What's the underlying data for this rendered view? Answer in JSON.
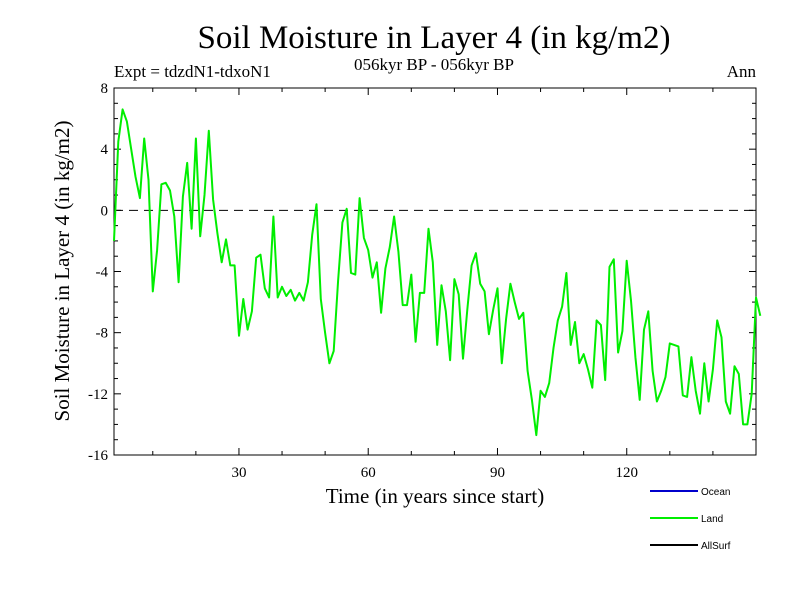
{
  "chart_data": {
    "type": "line",
    "title": "Soil Moisture in Layer 4 (in kg/m2)",
    "subtitle": "056kyr BP - 056kyr BP",
    "experiment_label": "Expt = tdzdN1-tdxoN1",
    "season_label": "Ann",
    "xlabel": "Time (in years since start)",
    "ylabel": "Soil Moisture in Layer 4 (in kg/m2)",
    "xlim": [
      1,
      150
    ],
    "ylim": [
      -16,
      8
    ],
    "x_ticks": [
      30,
      60,
      90,
      120
    ],
    "x_tick_labels": [
      "30",
      "60",
      "90",
      "120"
    ],
    "y_ticks": [
      8,
      4,
      0,
      -4,
      -8,
      -12,
      -16
    ],
    "y_tick_labels": [
      "8",
      "4",
      "0",
      "-4",
      "-8",
      "-12",
      "-16"
    ],
    "zero_line": 0,
    "legend": [
      {
        "name": "Ocean",
        "color": "#0000cc"
      },
      {
        "name": "Land",
        "color": "#00ee00"
      },
      {
        "name": "AllSurf",
        "color": "#000000"
      }
    ],
    "series": [
      {
        "name": "Land",
        "color": "#00ee00",
        "x_start": 1,
        "values": [
          -2.0,
          4.5,
          6.6,
          5.8,
          4.0,
          2.2,
          0.8,
          4.7,
          2.0,
          -5.3,
          -2.6,
          1.7,
          1.8,
          1.3,
          -0.4,
          -4.7,
          0.9,
          3.1,
          -1.2,
          4.7,
          -1.7,
          1.0,
          5.2,
          0.7,
          -1.5,
          -3.4,
          -1.9,
          -3.6,
          -3.6,
          -8.2,
          -5.8,
          -7.8,
          -6.6,
          -3.1,
          -2.9,
          -5.1,
          -5.7,
          -0.4,
          -5.7,
          -5.0,
          -5.6,
          -5.2,
          -5.9,
          -5.4,
          -5.9,
          -4.7,
          -1.6,
          0.4,
          -5.8,
          -8.0,
          -10.0,
          -9.2,
          -4.6,
          -0.8,
          0.1,
          -4.1,
          -4.2,
          0.8,
          -1.8,
          -2.6,
          -4.4,
          -3.4,
          -6.7,
          -3.8,
          -2.4,
          -0.4,
          -2.7,
          -6.2,
          -6.2,
          -4.2,
          -8.6,
          -5.4,
          -5.4,
          -1.2,
          -3.4,
          -8.8,
          -4.9,
          -6.6,
          -9.8,
          -4.5,
          -5.5,
          -9.7,
          -6.5,
          -3.6,
          -2.8,
          -4.8,
          -5.3,
          -8.1,
          -6.5,
          -5.1,
          -10.0,
          -7.1,
          -4.8,
          -6.0,
          -7.1,
          -6.7,
          -10.5,
          -12.4,
          -14.7,
          -11.8,
          -12.2,
          -11.3,
          -9.0,
          -7.2,
          -6.3,
          -4.1,
          -8.8,
          -7.3,
          -10.0,
          -9.4,
          -10.4,
          -11.6,
          -7.2,
          -7.5,
          -11.1,
          -3.7,
          -3.2,
          -9.3,
          -7.9,
          -3.3,
          -5.9,
          -9.6,
          -12.4,
          -7.8,
          -6.6,
          -10.5,
          -12.5,
          -11.8,
          -10.9,
          -8.7,
          -8.8,
          -8.9,
          -12.1,
          -12.2,
          -9.6,
          -11.8,
          -13.3,
          -10.0,
          -12.5,
          -10.4,
          -7.2,
          -8.3,
          -12.5,
          -13.3,
          -10.2,
          -10.7,
          -14.0,
          -14.0,
          -12.0,
          -5.7,
          -6.9
        ]
      }
    ]
  }
}
